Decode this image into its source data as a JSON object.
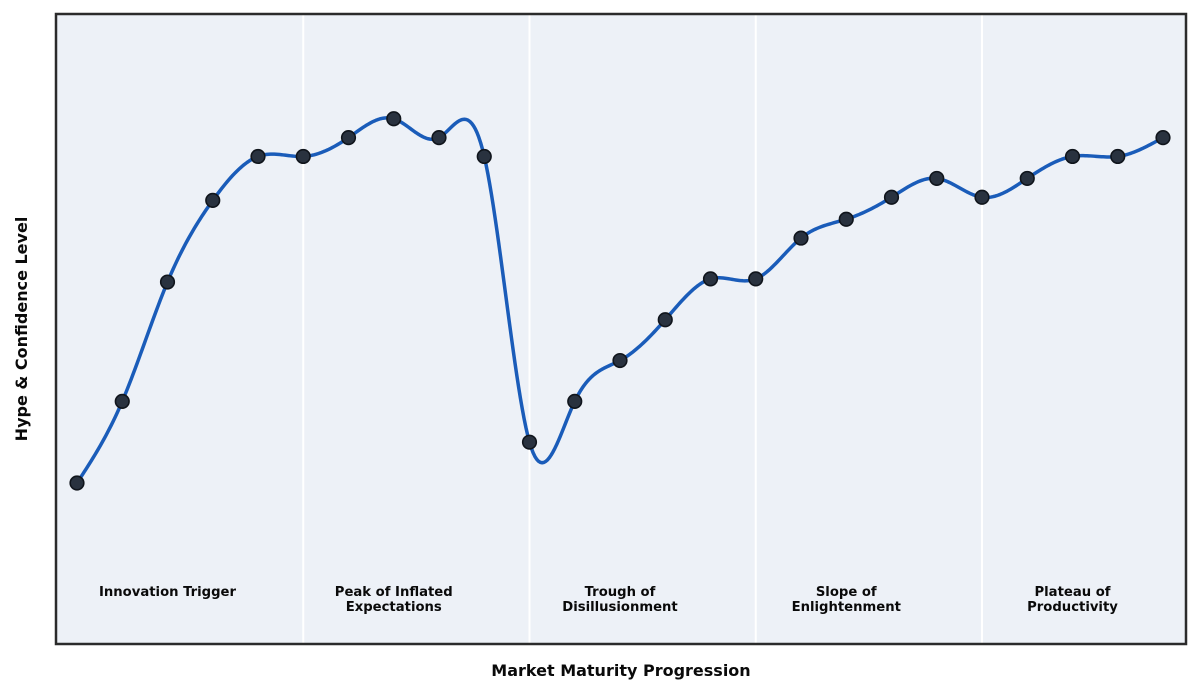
{
  "chart_data": {
    "type": "line",
    "title": "",
    "xlabel": "Market Maturity Progression",
    "ylabel": "Hype & Confidence Level",
    "x": [
      0,
      1,
      2,
      3,
      4,
      5,
      6,
      7,
      8,
      9,
      10,
      11,
      12,
      13,
      14,
      15,
      16,
      17,
      18,
      19,
      20,
      21,
      22,
      23,
      24
    ],
    "series": [
      {
        "name": "Hype & Confidence",
        "values": [
          25,
          38,
          57,
          70,
          77,
          77,
          80,
          83,
          80,
          77,
          31.5,
          38,
          44.5,
          51,
          57.5,
          57.5,
          64,
          67,
          70.5,
          73.5,
          70.5,
          73.5,
          77,
          77,
          80
        ]
      }
    ],
    "ylim": [
      0,
      100
    ],
    "xlim": [
      -0.47,
      24.52
    ],
    "grid": false,
    "legend": "none",
    "axis_ticks": "none",
    "smooth_spline": true,
    "markers": true,
    "phase_boundaries_x": [
      5,
      10,
      15,
      20
    ],
    "phases": [
      {
        "label_lines": [
          "Innovation Trigger"
        ],
        "label_center_x": 2
      },
      {
        "label_lines": [
          "Peak of Inflated",
          "Expectations"
        ],
        "label_center_x": 7
      },
      {
        "label_lines": [
          "Trough of",
          "Disillusionment"
        ],
        "label_center_x": 12
      },
      {
        "label_lines": [
          "Slope of",
          "Enlightenment"
        ],
        "label_center_x": 17
      },
      {
        "label_lines": [
          "Plateau of",
          "Productivity"
        ],
        "label_center_x": 22
      }
    ],
    "colors": {
      "line": "#1a5cb9",
      "marker_fill": "#29323f",
      "marker_edge": "#10151c",
      "plot_background": "#edf1f7",
      "phase_divider": "#ffffff",
      "plot_border": "#2b2b2b",
      "label_text": "#0a0a0a",
      "page_background": "#ffffff"
    }
  }
}
